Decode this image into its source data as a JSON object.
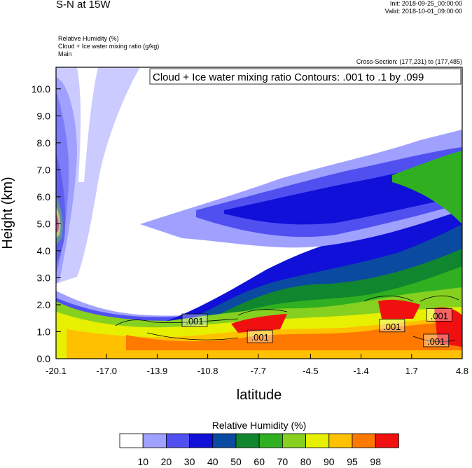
{
  "header": {
    "title": "S-N at 15W",
    "init": "Init: 2018-09-25_00:00:00",
    "valid": "Valid: 2018-10-01_09:00:00",
    "field_line1": "Relative Humidity   (%)",
    "field_line2": "Cloud + Ice water mixing ratio   (g/kg)",
    "field_line3": "Main",
    "cross_section": "Cross-Section: (177,231) to (177,485)"
  },
  "chart_data": {
    "type": "heatmap",
    "title": "S-N at 15W",
    "xlabel": "latitude",
    "ylabel": "Height (km)",
    "x_ticks": [
      "-20.1",
      "-17.0",
      "-13.9",
      "-10.8",
      "-7.7",
      "-4.5",
      "-1.4",
      "1.7",
      "4.8"
    ],
    "x_tick_values": [
      -20.1,
      -17.0,
      -13.9,
      -10.8,
      -7.7,
      -4.5,
      -1.4,
      1.7,
      4.8
    ],
    "y_ticks": [
      "0.0",
      "1.0",
      "2.0",
      "3.0",
      "4.0",
      "5.0",
      "6.0",
      "7.0",
      "8.0",
      "9.0",
      "10.0"
    ],
    "y_tick_values": [
      0,
      1,
      2,
      3,
      4,
      5,
      6,
      7,
      8,
      9,
      10
    ],
    "xlim": [
      -20.1,
      4.8
    ],
    "ylim": [
      0,
      10.8
    ],
    "contour_note": "Cloud + Ice water mixing ratio Contours: .001 to .1 by .099",
    "contour_labels": [
      ".001",
      ".001",
      ".001",
      ".001",
      ".001"
    ],
    "colorbar_title": "Relative Humidity  (%)",
    "colorbar_levels": [
      "10",
      "20",
      "30",
      "40",
      "50",
      "60",
      "70",
      "80",
      "90",
      "95",
      "98"
    ],
    "colorbar_colors": [
      "#ffffff",
      "#a0a0ff",
      "#5050f0",
      "#1010d8",
      "#0a4aa0",
      "#10862e",
      "#30b020",
      "#86d020",
      "#e6f000",
      "#ffc000",
      "#ff7800",
      "#f01010"
    ]
  }
}
